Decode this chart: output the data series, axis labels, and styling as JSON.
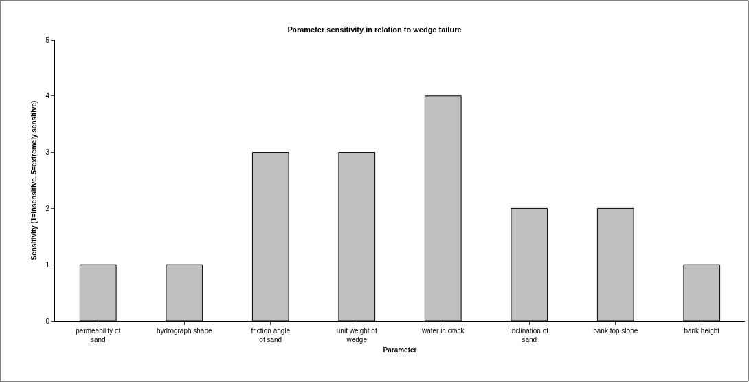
{
  "chart_data": {
    "type": "bar",
    "title": "Parameter sensitivity in relation to wedge failure",
    "xlabel": "Parameter",
    "ylabel": "Sensitivity (1=insensitive, 5=extremely sensitive)",
    "categories": [
      "permeability of sand",
      "hydrograph shape",
      "friction angle of sand",
      "unit weight of wedge",
      "water in crack",
      "inclination of sand",
      "bank top slope",
      "bank height"
    ],
    "values": [
      1,
      1,
      3,
      3,
      4,
      2,
      2,
      1
    ],
    "color": "#c0c0c0",
    "ylim": [
      0,
      5
    ],
    "yticks": [
      0,
      1,
      2,
      3,
      4,
      5
    ]
  }
}
